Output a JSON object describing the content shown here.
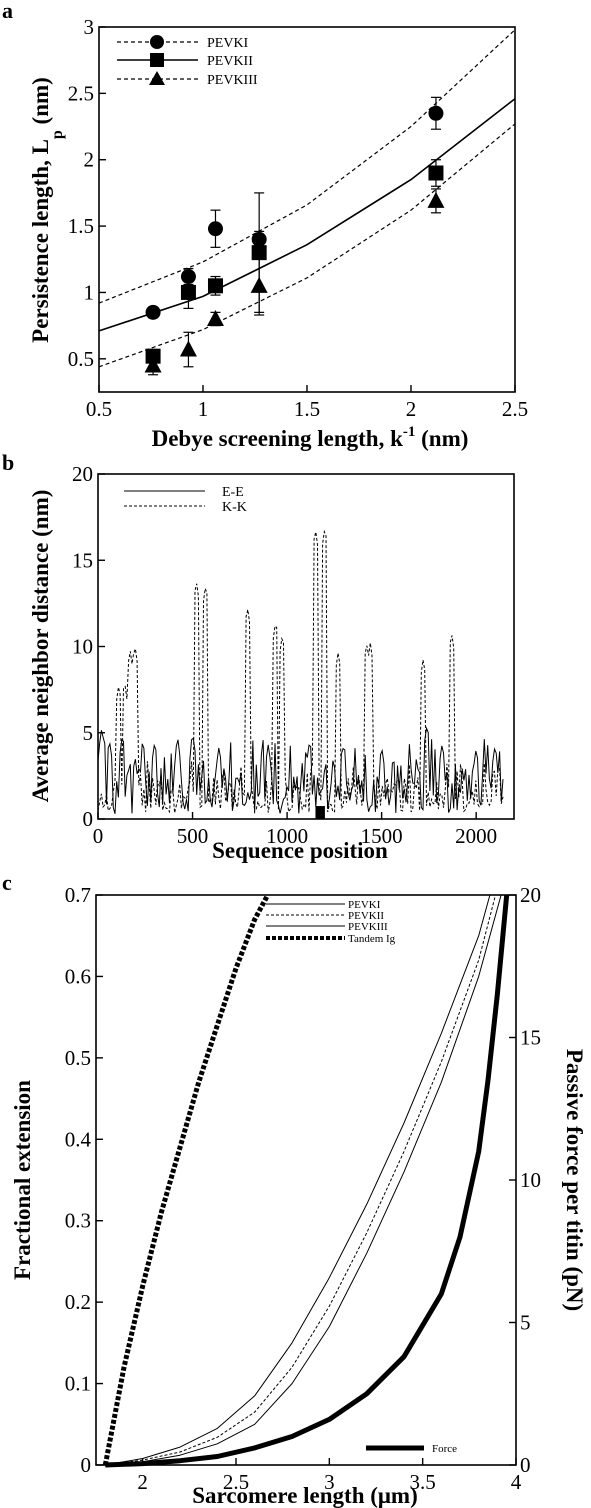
{
  "figure": {
    "panel_labels": [
      "a",
      "b",
      "c"
    ]
  },
  "chart_data": [
    {
      "id": "a",
      "type": "scatter",
      "xlabel": "Debye screening length, k",
      "xlabel_sup": "-1",
      "xlabel_unit": " (nm)",
      "ylabel": "Persistence length, L",
      "ylabel_sub": "p",
      "ylabel_unit": " (nm)",
      "xlim": [
        0.5,
        2.5
      ],
      "ylim": [
        0.25,
        3
      ],
      "xticks": [
        0.5,
        1,
        1.5,
        2,
        2.5
      ],
      "xtick_labels": [
        "0.5",
        "1",
        "1.5",
        "2",
        "2.5"
      ],
      "yticks": [
        0.5,
        1,
        1.5,
        2,
        2.5,
        3
      ],
      "ytick_labels": [
        "0.5",
        "1",
        "1.5",
        "2",
        "2.5",
        "3"
      ],
      "legend_position": "top-left",
      "series": [
        {
          "name": "PEVKI",
          "marker": "circle",
          "line": "dashed",
          "x": [
            0.76,
            0.93,
            1.06,
            1.27,
            2.12
          ],
          "y": [
            0.85,
            1.12,
            1.48,
            1.4,
            2.35
          ],
          "err": [
            0.04,
            0.06,
            0.14,
            0.06,
            0.12
          ],
          "fit": [
            [
              0.5,
              0.92
            ],
            [
              1.0,
              1.23
            ],
            [
              1.5,
              1.66
            ],
            [
              2.0,
              2.25
            ],
            [
              2.5,
              2.98
            ]
          ]
        },
        {
          "name": "PEVKII",
          "marker": "square",
          "line": "solid",
          "x": [
            0.76,
            0.93,
            1.06,
            1.27,
            2.12
          ],
          "y": [
            0.52,
            1.0,
            1.05,
            1.3,
            1.9
          ],
          "err": [
            0.05,
            0.12,
            0.07,
            0.45,
            0.1
          ],
          "fit": [
            [
              0.5,
              0.71
            ],
            [
              1.0,
              0.97
            ],
            [
              1.5,
              1.36
            ],
            [
              2.0,
              1.85
            ],
            [
              2.5,
              2.46
            ]
          ]
        },
        {
          "name": "PEVKIII",
          "marker": "triangle",
          "line": "dashed",
          "x": [
            0.76,
            0.93,
            1.06,
            1.27,
            2.12
          ],
          "y": [
            0.45,
            0.57,
            0.8,
            1.05,
            1.69
          ],
          "err": [
            0.07,
            0.13,
            0.05,
            0.22,
            0.09
          ],
          "fit": [
            [
              0.5,
              0.44
            ],
            [
              1.0,
              0.72
            ],
            [
              1.5,
              1.11
            ],
            [
              2.0,
              1.62
            ],
            [
              2.5,
              2.27
            ]
          ]
        }
      ]
    },
    {
      "id": "b",
      "type": "line",
      "xlabel": "Sequence position",
      "ylabel": "Average neighbor distance (nm)",
      "xlim": [
        0,
        2200
      ],
      "ylim": [
        0,
        20
      ],
      "xticks": [
        0,
        500,
        1000,
        1500,
        2000
      ],
      "xtick_labels": [
        "0",
        "500",
        "1000",
        "1500",
        "2000"
      ],
      "yticks": [
        0,
        5,
        10,
        15,
        20
      ],
      "ytick_labels": [
        "0",
        "5",
        "10",
        "15",
        "20"
      ],
      "legend_position": "top-left",
      "series": [
        {
          "name": "E-E",
          "line": "solid",
          "peaks": [
            [
              20,
              5.3
            ],
            [
              60,
              4.6
            ],
            [
              130,
              4.9
            ],
            [
              300,
              4.5
            ],
            [
              420,
              4.7
            ],
            [
              500,
              5.0
            ],
            [
              640,
              4.2
            ],
            [
              900,
              4.3
            ],
            [
              1120,
              4.6
            ],
            [
              1300,
              4.4
            ],
            [
              1500,
              4.2
            ],
            [
              1740,
              5.5
            ],
            [
              1820,
              4.4
            ],
            [
              2000,
              4.1
            ],
            [
              2100,
              4.3
            ]
          ],
          "marked_gap": [
            1150,
            1200
          ]
        },
        {
          "name": "K-K",
          "line": "dashed",
          "peaks": [
            [
              110,
              7.8
            ],
            [
              140,
              8.0
            ],
            [
              170,
              9.8
            ],
            [
              195,
              10.1
            ],
            [
              520,
              13.8
            ],
            [
              570,
              13.6
            ],
            [
              790,
              12.3
            ],
            [
              940,
              11.5
            ],
            [
              975,
              10.7
            ],
            [
              1150,
              16.8
            ],
            [
              1200,
              16.9
            ],
            [
              1270,
              9.7
            ],
            [
              1420,
              10.2
            ],
            [
              1440,
              10.2
            ],
            [
              1720,
              9.3
            ],
            [
              1870,
              10.8
            ]
          ]
        }
      ]
    },
    {
      "id": "c",
      "type": "line",
      "xlabel": "Sarcomere length (μm)",
      "ylabel": "Fractional extension",
      "y2label": "Passive force per titin (pN)",
      "xlim": [
        1.75,
        4
      ],
      "ylim": [
        0,
        0.7
      ],
      "y2lim": [
        0,
        20
      ],
      "xticks": [
        2,
        2.5,
        3,
        3.5,
        4
      ],
      "xtick_labels": [
        "2",
        "2.5",
        "3",
        "3.5",
        "4"
      ],
      "yticks": [
        0,
        0.1,
        0.2,
        0.3,
        0.4,
        0.5,
        0.6,
        0.7
      ],
      "ytick_labels": [
        "0",
        "0.1",
        "0.2",
        "0.3",
        "0.4",
        "0.5",
        "0.6",
        "0.7"
      ],
      "y2ticks": [
        0,
        5,
        10,
        15,
        20
      ],
      "y2tick_labels": [
        "0",
        "5",
        "10",
        "15",
        "20"
      ],
      "legend_position": "top-right",
      "force_legend_position": "bottom-right",
      "series": [
        {
          "name": "PEVKI",
          "line": "solid",
          "width": 1,
          "x": [
            1.8,
            2.0,
            2.2,
            2.4,
            2.6,
            2.8,
            3.0,
            3.2,
            3.4,
            3.6,
            3.8,
            3.86
          ],
          "y": [
            0.0,
            0.008,
            0.022,
            0.045,
            0.085,
            0.15,
            0.23,
            0.32,
            0.42,
            0.53,
            0.65,
            0.7
          ]
        },
        {
          "name": "PEVKII",
          "line": "dashed",
          "width": 1,
          "x": [
            1.8,
            2.0,
            2.2,
            2.4,
            2.6,
            2.8,
            3.0,
            3.2,
            3.4,
            3.6,
            3.8,
            3.89
          ],
          "y": [
            0.0,
            0.006,
            0.016,
            0.034,
            0.065,
            0.12,
            0.195,
            0.285,
            0.385,
            0.495,
            0.62,
            0.7
          ]
        },
        {
          "name": "PEVKIII",
          "line": "solid",
          "width": 1,
          "x": [
            1.8,
            2.0,
            2.2,
            2.4,
            2.6,
            2.8,
            3.0,
            3.2,
            3.4,
            3.6,
            3.8,
            3.92
          ],
          "y": [
            0.0,
            0.004,
            0.012,
            0.026,
            0.05,
            0.1,
            0.17,
            0.26,
            0.36,
            0.47,
            0.6,
            0.7
          ]
        },
        {
          "name": "Tandem Ig",
          "line": "dotted-thick",
          "width": 5,
          "x": [
            1.8,
            1.9,
            2.0,
            2.1,
            2.2,
            2.3,
            2.4,
            2.5,
            2.6,
            2.67
          ],
          "y": [
            0.0,
            0.12,
            0.22,
            0.31,
            0.39,
            0.47,
            0.54,
            0.61,
            0.67,
            0.7
          ]
        },
        {
          "name": "Force",
          "line": "solid-thick",
          "width": 5,
          "axis": "y2",
          "x": [
            1.8,
            2.0,
            2.2,
            2.4,
            2.6,
            2.8,
            3.0,
            3.2,
            3.4,
            3.6,
            3.7,
            3.8,
            3.85,
            3.9,
            3.95
          ],
          "y": [
            0.0,
            0.05,
            0.15,
            0.3,
            0.6,
            1.0,
            1.6,
            2.5,
            3.8,
            6.0,
            8.0,
            11.0,
            13.5,
            16.5,
            20.0
          ]
        }
      ]
    }
  ]
}
